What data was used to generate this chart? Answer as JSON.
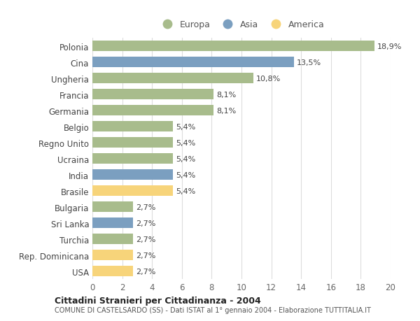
{
  "categories": [
    "Polonia",
    "Cina",
    "Ungheria",
    "Francia",
    "Germania",
    "Belgio",
    "Regno Unito",
    "Ucraina",
    "India",
    "Brasile",
    "Bulgaria",
    "Sri Lanka",
    "Turchia",
    "Rep. Dominicana",
    "USA"
  ],
  "values": [
    18.9,
    13.5,
    10.8,
    8.1,
    8.1,
    5.4,
    5.4,
    5.4,
    5.4,
    5.4,
    2.7,
    2.7,
    2.7,
    2.7,
    2.7
  ],
  "labels": [
    "18,9%",
    "13,5%",
    "10,8%",
    "8,1%",
    "8,1%",
    "5,4%",
    "5,4%",
    "5,4%",
    "5,4%",
    "5,4%",
    "2,7%",
    "2,7%",
    "2,7%",
    "2,7%",
    "2,7%"
  ],
  "continents": [
    "Europa",
    "Asia",
    "Europa",
    "Europa",
    "Europa",
    "Europa",
    "Europa",
    "Europa",
    "Asia",
    "America",
    "Europa",
    "Asia",
    "Europa",
    "America",
    "America"
  ],
  "colors": {
    "Europa": "#a8bc8c",
    "Asia": "#7b9fc0",
    "America": "#f7d47a"
  },
  "title": "Cittadini Stranieri per Cittadinanza - 2004",
  "subtitle": "COMUNE DI CASTELSARDO (SS) - Dati ISTAT al 1° gennaio 2004 - Elaborazione TUTTITALIA.IT",
  "xlim": [
    0,
    20
  ],
  "xticks": [
    0,
    2,
    4,
    6,
    8,
    10,
    12,
    14,
    16,
    18,
    20
  ],
  "background_color": "#ffffff",
  "grid_color": "#dddddd",
  "bar_height": 0.65
}
